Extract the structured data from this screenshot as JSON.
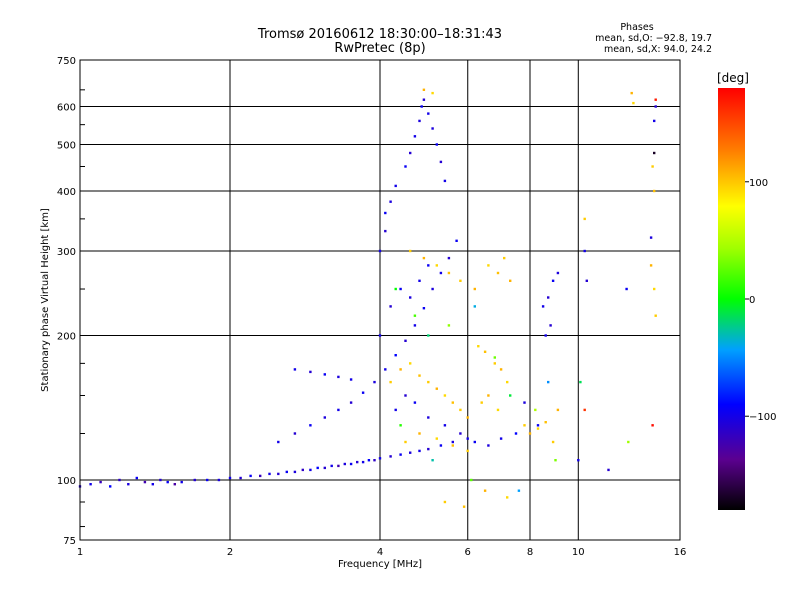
{
  "header": {
    "title_line1": "Tromsø 20160612 18:30:00–18:31:43",
    "title_line2": "RwPretec (8p)"
  },
  "phases": {
    "title": "Phases",
    "line_o": "mean, sd,O: −92.8, 19.7",
    "line_x": "mean, sd,X:  94.0, 24.2"
  },
  "colorbar": {
    "label": "[deg]",
    "ticks": [
      "100",
      "0",
      "−100"
    ],
    "tick_values": [
      100,
      0,
      -100
    ],
    "range": [
      -180,
      180
    ]
  },
  "chart_data": {
    "type": "scatter",
    "xlabel": "Frequency [MHz]",
    "ylabel": "Stationary phase Virtual Height [km]",
    "x_scale": "log",
    "y_scale": "log",
    "xlim": [
      1,
      16
    ],
    "ylim": [
      75,
      750
    ],
    "grid": true,
    "x_ticks": [
      1,
      2,
      4,
      6,
      8,
      10,
      16
    ],
    "x_tick_labels": [
      "1",
      "2",
      "4",
      "6",
      "8",
      "10",
      "16"
    ],
    "y_ticks": [
      75,
      100,
      200,
      300,
      400,
      500,
      600,
      750
    ],
    "y_tick_labels": [
      "75",
      "100",
      "200",
      "300",
      "400",
      "500",
      "600",
      "750"
    ],
    "series": [
      {
        "mode": "O",
        "points": [
          [
            1.0,
            97,
            -110
          ],
          [
            1.05,
            98,
            -100
          ],
          [
            1.1,
            99,
            -120
          ],
          [
            1.15,
            97,
            -90
          ],
          [
            1.2,
            100,
            -115
          ],
          [
            1.25,
            98,
            -105
          ],
          [
            1.3,
            101,
            -95
          ],
          [
            1.35,
            99,
            -125
          ],
          [
            1.4,
            98,
            -100
          ],
          [
            1.45,
            100,
            -110
          ],
          [
            1.5,
            99,
            -95
          ],
          [
            1.55,
            98,
            -130
          ],
          [
            1.6,
            99,
            -100
          ],
          [
            1.7,
            100,
            -110
          ],
          [
            1.8,
            100,
            -95
          ],
          [
            1.9,
            100,
            -105
          ],
          [
            2.0,
            101,
            -100
          ],
          [
            2.1,
            101,
            -110
          ],
          [
            2.2,
            102,
            -95
          ],
          [
            2.3,
            102,
            -120
          ],
          [
            2.4,
            103,
            -100
          ],
          [
            2.5,
            103,
            -110
          ],
          [
            2.6,
            104,
            -95
          ],
          [
            2.7,
            104,
            -105
          ],
          [
            2.8,
            105,
            -115
          ],
          [
            2.9,
            105,
            -100
          ],
          [
            3.0,
            106,
            -90
          ],
          [
            3.1,
            106,
            -110
          ],
          [
            3.2,
            107,
            -100
          ],
          [
            3.3,
            107,
            -125
          ],
          [
            3.4,
            108,
            -105
          ],
          [
            3.5,
            108,
            -95
          ],
          [
            3.6,
            109,
            -110
          ],
          [
            3.7,
            109,
            -100
          ],
          [
            3.8,
            110,
            -90
          ],
          [
            3.9,
            110,
            -115
          ],
          [
            4.0,
            111,
            -100
          ],
          [
            4.2,
            112,
            -110
          ],
          [
            4.4,
            113,
            -95
          ],
          [
            4.6,
            114,
            -105
          ],
          [
            4.8,
            115,
            -100
          ],
          [
            5.0,
            116,
            -110
          ],
          [
            5.3,
            118,
            -95
          ],
          [
            5.6,
            120,
            -105
          ],
          [
            6.0,
            122,
            -100
          ],
          [
            2.5,
            120,
            -100
          ],
          [
            2.7,
            125,
            -110
          ],
          [
            2.9,
            130,
            -95
          ],
          [
            3.1,
            135,
            -105
          ],
          [
            3.3,
            140,
            -100
          ],
          [
            3.5,
            145,
            -110
          ],
          [
            3.7,
            152,
            -95
          ],
          [
            3.9,
            160,
            -105
          ],
          [
            4.1,
            170,
            -100
          ],
          [
            4.3,
            182,
            -90
          ],
          [
            4.5,
            195,
            -110
          ],
          [
            4.7,
            210,
            -100
          ],
          [
            4.9,
            228,
            -95
          ],
          [
            5.1,
            250,
            -105
          ],
          [
            5.3,
            270,
            -100
          ],
          [
            5.5,
            290,
            -110
          ],
          [
            5.7,
            315,
            -95
          ],
          [
            2.7,
            170,
            -100
          ],
          [
            2.9,
            168,
            -110
          ],
          [
            3.1,
            166,
            -95
          ],
          [
            3.3,
            164,
            -105
          ],
          [
            3.5,
            162,
            -100
          ],
          [
            4.0,
            300,
            -100
          ],
          [
            4.1,
            330,
            -110
          ],
          [
            4.1,
            360,
            -95
          ],
          [
            4.2,
            380,
            -105
          ],
          [
            4.3,
            410,
            -100
          ],
          [
            4.5,
            450,
            -95
          ],
          [
            4.6,
            480,
            -110
          ],
          [
            4.7,
            520,
            -100
          ],
          [
            4.8,
            560,
            -105
          ],
          [
            4.85,
            600,
            -95
          ],
          [
            4.9,
            620,
            -110
          ],
          [
            5.0,
            580,
            -100
          ],
          [
            5.1,
            540,
            -105
          ],
          [
            5.2,
            500,
            -95
          ],
          [
            5.3,
            460,
            -110
          ],
          [
            5.4,
            420,
            -100
          ],
          [
            4.0,
            200,
            -100
          ],
          [
            4.2,
            230,
            -110
          ],
          [
            4.4,
            250,
            -95
          ],
          [
            4.6,
            240,
            -105
          ],
          [
            4.8,
            260,
            -100
          ],
          [
            5.0,
            280,
            -95
          ],
          [
            4.3,
            140,
            -100
          ],
          [
            4.5,
            150,
            -110
          ],
          [
            4.7,
            145,
            -95
          ],
          [
            5.0,
            135,
            -105
          ],
          [
            5.4,
            130,
            -100
          ],
          [
            5.8,
            125,
            -110
          ],
          [
            6.2,
            120,
            -95
          ],
          [
            6.6,
            118,
            -105
          ],
          [
            7.0,
            122,
            -100
          ],
          [
            7.5,
            125,
            -90
          ],
          [
            8.5,
            230,
            -100
          ],
          [
            8.7,
            240,
            -110
          ],
          [
            8.9,
            260,
            -95
          ],
          [
            9.1,
            270,
            -105
          ],
          [
            8.6,
            200,
            -100
          ],
          [
            8.8,
            210,
            -110
          ],
          [
            10.3,
            300,
            -100
          ],
          [
            10.4,
            260,
            -110
          ],
          [
            12.5,
            250,
            -95
          ],
          [
            14.0,
            320,
            -105
          ],
          [
            14.2,
            560,
            -100
          ],
          [
            14.3,
            600,
            -110
          ],
          [
            10.0,
            110,
            -100
          ],
          [
            11.5,
            105,
            -110
          ],
          [
            8.3,
            130,
            -95
          ],
          [
            7.8,
            145,
            -105
          ]
        ]
      },
      {
        "mode": "X",
        "points": [
          [
            4.2,
            160,
            100
          ],
          [
            4.4,
            170,
            110
          ],
          [
            4.6,
            175,
            95
          ],
          [
            4.8,
            165,
            105
          ],
          [
            5.0,
            160,
            100
          ],
          [
            5.2,
            155,
            110
          ],
          [
            5.4,
            150,
            95
          ],
          [
            5.6,
            145,
            105
          ],
          [
            5.8,
            140,
            100
          ],
          [
            6.0,
            135,
            110
          ],
          [
            6.3,
            190,
            95
          ],
          [
            6.5,
            185,
            105
          ],
          [
            6.8,
            175,
            100
          ],
          [
            7.0,
            170,
            110
          ],
          [
            7.2,
            160,
            95
          ],
          [
            6.4,
            145,
            100
          ],
          [
            6.6,
            150,
            110
          ],
          [
            6.9,
            140,
            95
          ],
          [
            4.5,
            120,
            100
          ],
          [
            4.8,
            125,
            110
          ],
          [
            5.2,
            122,
            95
          ],
          [
            5.6,
            118,
            105
          ],
          [
            6.0,
            115,
            100
          ],
          [
            4.6,
            300,
            100
          ],
          [
            4.9,
            290,
            110
          ],
          [
            5.2,
            280,
            95
          ],
          [
            5.5,
            270,
            105
          ],
          [
            5.8,
            260,
            100
          ],
          [
            6.2,
            250,
            110
          ],
          [
            6.6,
            280,
            95
          ],
          [
            6.9,
            270,
            105
          ],
          [
            7.1,
            290,
            100
          ],
          [
            7.3,
            260,
            110
          ],
          [
            7.8,
            130,
            100
          ],
          [
            8.0,
            125,
            110
          ],
          [
            8.3,
            128,
            95
          ],
          [
            8.6,
            132,
            105
          ],
          [
            8.9,
            120,
            100
          ],
          [
            9.1,
            140,
            110
          ],
          [
            5.4,
            90,
            100
          ],
          [
            6.5,
            95,
            110
          ],
          [
            7.2,
            92,
            95
          ],
          [
            5.9,
            88,
            105
          ],
          [
            10.3,
            350,
            100
          ],
          [
            12.8,
            640,
            110
          ],
          [
            12.9,
            610,
            95
          ],
          [
            14.1,
            450,
            100
          ],
          [
            14.2,
            400,
            105
          ],
          [
            14.0,
            280,
            110
          ],
          [
            14.2,
            250,
            95
          ],
          [
            14.3,
            220,
            100
          ],
          [
            4.9,
            650,
            110
          ],
          [
            5.1,
            640,
            95
          ]
        ]
      },
      {
        "mode": "mixed",
        "points": [
          [
            4.3,
            250,
            0
          ],
          [
            4.7,
            220,
            20
          ],
          [
            5.0,
            200,
            -20
          ],
          [
            5.5,
            210,
            40
          ],
          [
            6.2,
            230,
            -40
          ],
          [
            6.8,
            180,
            30
          ],
          [
            7.3,
            150,
            -10
          ],
          [
            8.2,
            140,
            50
          ],
          [
            8.7,
            160,
            -50
          ],
          [
            4.4,
            130,
            10
          ],
          [
            5.1,
            110,
            -30
          ],
          [
            6.1,
            100,
            25
          ],
          [
            7.6,
            95,
            -45
          ],
          [
            9.0,
            110,
            35
          ],
          [
            10.1,
            160,
            -15
          ],
          [
            12.6,
            120,
            45
          ],
          [
            14.3,
            620,
            170
          ],
          [
            14.2,
            480,
            -170
          ],
          [
            10.3,
            140,
            160
          ],
          [
            14.1,
            130,
            175
          ]
        ]
      }
    ]
  }
}
